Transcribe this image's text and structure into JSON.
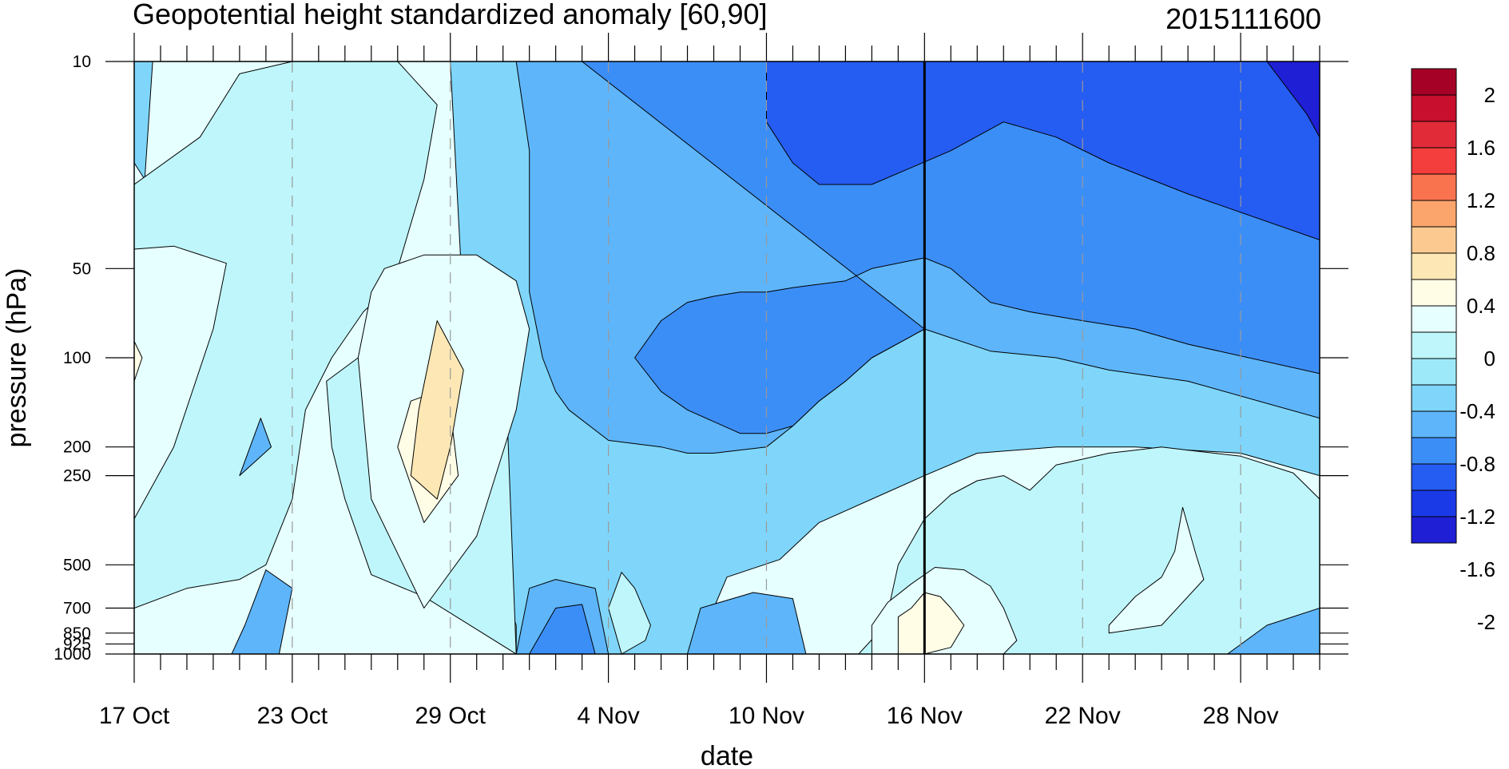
{
  "chart_data": {
    "type": "heatmap",
    "title": "Geopotential height standardized anomaly [60,90]",
    "date_label": "2015111600",
    "xlabel": "date",
    "ylabel": "pressure (hPa)",
    "x_ticks": [
      "17 Oct",
      "23 Oct",
      "29 Oct",
      "4 Nov",
      "10 Nov",
      "16 Nov",
      "22 Nov",
      "28 Nov"
    ],
    "x_range_days": [
      0,
      45
    ],
    "y_ticks": [
      "10",
      "50",
      "100",
      "200",
      "250",
      "500",
      "700",
      "850",
      "925",
      "1000"
    ],
    "y_scale": "log",
    "y_range": [
      1000,
      10
    ],
    "current_date_marker": "16 Nov",
    "colorbar": {
      "labels": [
        "2",
        "1.6",
        "1.2",
        "0.8",
        "0.4",
        "0",
        "-0.4",
        "-0.8",
        "-1.2",
        "-1.6",
        "-2"
      ],
      "levels": [
        2.2,
        2.0,
        1.8,
        1.6,
        1.4,
        1.2,
        1.0,
        0.8,
        0.6,
        0.4,
        0.2,
        0.0,
        -0.2,
        -0.4,
        -0.6,
        -0.8,
        -1.0,
        -1.2,
        -1.4,
        -1.6,
        -1.8,
        -2.0,
        -2.2
      ],
      "colors": [
        "#a50026",
        "#c8102e",
        "#e12b38",
        "#f43d3d",
        "#f9734e",
        "#fba56c",
        "#fcca91",
        "#fde8b5",
        "#fffde6",
        "#e6ffff",
        "#bff6fb",
        "#9de9fa",
        "#7fd6fa",
        "#5eb5fa",
        "#3c8ef7",
        "#255cf2",
        "#1a3ae8",
        "#1f1fd6"
      ]
    },
    "regions": [
      {
        "level": -0.2,
        "points": [
          [
            0,
            10
          ],
          [
            0.7,
            10
          ],
          [
            0.4,
            25
          ],
          [
            0,
            22
          ]
        ]
      },
      {
        "level": 0.2,
        "points": [
          [
            10,
            10
          ],
          [
            6,
            10
          ],
          [
            4,
            11
          ],
          [
            2.5,
            18
          ],
          [
            0,
            26
          ],
          [
            0,
            700
          ],
          [
            2,
            600
          ],
          [
            4,
            560
          ],
          [
            5,
            500
          ],
          [
            6,
            300
          ],
          [
            6.5,
            150
          ],
          [
            7.5,
            100
          ],
          [
            8.7,
            70
          ],
          [
            9.5,
            60
          ],
          [
            11.5,
            65
          ],
          [
            14,
            68
          ],
          [
            14.5,
            1000
          ],
          [
            11,
            640
          ],
          [
            9,
            540
          ],
          [
            8,
            300
          ],
          [
            7.5,
            200
          ],
          [
            7.3,
            120
          ],
          [
            8.5,
            100
          ],
          [
            9.5,
            80
          ],
          [
            10,
            50
          ],
          [
            11,
            25
          ],
          [
            11.5,
            14
          ]
        ]
      },
      {
        "level": 0.4,
        "points": [
          [
            0,
            43
          ],
          [
            1.5,
            42
          ],
          [
            3.5,
            48
          ],
          [
            3,
            80
          ],
          [
            1.5,
            200
          ],
          [
            0,
            350
          ]
        ]
      },
      {
        "level": 0.6,
        "points": [
          [
            0,
            88
          ],
          [
            0.3,
            100
          ],
          [
            0,
            120
          ]
        ]
      },
      {
        "level": 0.4,
        "points": [
          [
            9.5,
            50
          ],
          [
            11,
            45
          ],
          [
            13,
            45
          ],
          [
            14.5,
            55
          ],
          [
            15,
            80
          ],
          [
            14.5,
            150
          ],
          [
            13,
            400
          ],
          [
            11,
            700
          ],
          [
            9,
            300
          ],
          [
            8.5,
            100
          ],
          [
            9,
            60
          ]
        ]
      },
      {
        "level": 0.6,
        "points": [
          [
            11.5,
            130
          ],
          [
            12,
            150
          ],
          [
            12.3,
            250
          ],
          [
            11,
            360
          ],
          [
            10,
            200
          ],
          [
            10.5,
            140
          ]
        ]
      },
      {
        "level": 0.8,
        "points": [
          [
            11.5,
            75
          ],
          [
            12.5,
            110
          ],
          [
            12,
            200
          ],
          [
            11.5,
            300
          ],
          [
            10.5,
            250
          ],
          [
            10.8,
            150
          ]
        ]
      },
      {
        "level": -0.4,
        "points": [
          [
            4.8,
            160
          ],
          [
            5.2,
            200
          ],
          [
            4,
            250
          ],
          [
            4.8,
            160
          ]
        ]
      },
      {
        "level": -0.4,
        "points": [
          [
            3.7,
            1000
          ],
          [
            4.2,
            800
          ],
          [
            5,
            520
          ],
          [
            6,
            600
          ],
          [
            5.5,
            1000
          ]
        ]
      },
      {
        "level": 0.2,
        "points": [
          [
            18.5,
            530
          ],
          [
            19,
            600
          ],
          [
            19.6,
            800
          ],
          [
            19.4,
            900
          ],
          [
            18.5,
            1000
          ],
          [
            18,
            700
          ]
        ]
      },
      {
        "level": 0.2,
        "points": [
          [
            27.5,
            1000
          ],
          [
            28.5,
            800
          ],
          [
            29,
            500
          ],
          [
            30,
            350
          ],
          [
            31,
            290
          ],
          [
            32,
            260
          ],
          [
            33,
            250
          ],
          [
            34,
            280
          ],
          [
            35,
            230
          ],
          [
            36,
            220
          ],
          [
            37,
            210
          ],
          [
            38,
            205
          ],
          [
            39,
            200
          ],
          [
            40,
            205
          ],
          [
            41,
            210
          ],
          [
            42,
            215
          ],
          [
            44,
            245
          ],
          [
            45,
            300
          ],
          [
            45,
            1000
          ]
        ]
      },
      {
        "level": 0.4,
        "points": [
          [
            28,
            800
          ],
          [
            28.6,
            670
          ],
          [
            29.5,
            580
          ],
          [
            30.4,
            510
          ],
          [
            31.5,
            520
          ],
          [
            32.5,
            590
          ],
          [
            33,
            700
          ],
          [
            33.5,
            900
          ],
          [
            33,
            1000
          ],
          [
            28,
            1000
          ]
        ]
      },
      {
        "level": 0.6,
        "points": [
          [
            29,
            750
          ],
          [
            29.5,
            700
          ],
          [
            30,
            620
          ],
          [
            30.6,
            640
          ],
          [
            31,
            700
          ],
          [
            31.5,
            800
          ],
          [
            31,
            950
          ],
          [
            30,
            1000
          ],
          [
            29,
            1000
          ]
        ]
      },
      {
        "level": 0.4,
        "points": [
          [
            37,
            800
          ],
          [
            38,
            640
          ],
          [
            39,
            550
          ],
          [
            39.5,
            450
          ],
          [
            39.8,
            320
          ],
          [
            40.3,
            460
          ],
          [
            40.6,
            560
          ],
          [
            39,
            800
          ],
          [
            37,
            850
          ]
        ]
      }
    ],
    "cool_regions": [
      {
        "level": -0.2,
        "points": [
          [
            12,
            10
          ],
          [
            45,
            10
          ],
          [
            45,
            250
          ],
          [
            42,
            210
          ],
          [
            38,
            200
          ],
          [
            35,
            200
          ],
          [
            32,
            210
          ],
          [
            30,
            250
          ],
          [
            28,
            300
          ],
          [
            26,
            360
          ],
          [
            24.5,
            480
          ],
          [
            22.5,
            550
          ],
          [
            22,
            700
          ],
          [
            21.5,
            1000
          ],
          [
            14.5,
            1000
          ],
          [
            14.5,
            800
          ],
          [
            14,
            600
          ],
          [
            13.5,
            550
          ],
          [
            13,
            500
          ]
        ]
      },
      {
        "level": -0.4,
        "points": [
          [
            14.5,
            10
          ],
          [
            45,
            10
          ],
          [
            45,
            160
          ],
          [
            40,
            120
          ],
          [
            37,
            110
          ],
          [
            35,
            100
          ],
          [
            32.5,
            95
          ],
          [
            30,
            80
          ],
          [
            28,
            100
          ],
          [
            27,
            120
          ],
          [
            26,
            140
          ],
          [
            25,
            170
          ],
          [
            24,
            200
          ],
          [
            22,
            210
          ],
          [
            21,
            210
          ],
          [
            20,
            200
          ],
          [
            18,
            190
          ],
          [
            16.5,
            150
          ],
          [
            16,
            130
          ],
          [
            15.5,
            100
          ],
          [
            15,
            60
          ],
          [
            15,
            20
          ]
        ]
      },
      {
        "level": -0.6,
        "points": [
          [
            17,
            10
          ],
          [
            45,
            10
          ],
          [
            45,
            113
          ],
          [
            40,
            90
          ],
          [
            38,
            80
          ],
          [
            36,
            75
          ],
          [
            34,
            70
          ],
          [
            32.5,
            65
          ],
          [
            31,
            50
          ],
          [
            30,
            46
          ],
          [
            28,
            50
          ],
          [
            27,
            55
          ],
          [
            25,
            58
          ],
          [
            24,
            60
          ],
          [
            23,
            60
          ],
          [
            22,
            62
          ],
          [
            21,
            65
          ],
          [
            20,
            75
          ],
          [
            19,
            100
          ],
          [
            20,
            130
          ],
          [
            21,
            150
          ],
          [
            23,
            180
          ],
          [
            24,
            180
          ],
          [
            25,
            170
          ],
          [
            26,
            140
          ],
          [
            27,
            120
          ],
          [
            28,
            100
          ],
          [
            30,
            80
          ]
        ]
      },
      {
        "level": -0.8,
        "points": [
          [
            24,
            10
          ],
          [
            45,
            10
          ],
          [
            45,
            40
          ],
          [
            40,
            28
          ],
          [
            37,
            22
          ],
          [
            35,
            18
          ],
          [
            33,
            16
          ],
          [
            31,
            20
          ],
          [
            28,
            26
          ],
          [
            26,
            26
          ],
          [
            25,
            22
          ],
          [
            24,
            16
          ]
        ]
      },
      {
        "level": -1.2,
        "points": [
          [
            43,
            10
          ],
          [
            45,
            10
          ],
          [
            45,
            18
          ],
          [
            44.5,
            15
          ]
        ]
      },
      {
        "level": -0.4,
        "points": [
          [
            14.5,
            1000
          ],
          [
            15,
            600
          ],
          [
            16,
            560
          ],
          [
            17.5,
            600
          ],
          [
            18,
            1000
          ]
        ]
      },
      {
        "level": -0.6,
        "points": [
          [
            15,
            1000
          ],
          [
            16,
            700
          ],
          [
            17,
            680
          ],
          [
            17.5,
            1000
          ]
        ]
      },
      {
        "level": -0.4,
        "points": [
          [
            21,
            1000
          ],
          [
            21.5,
            700
          ],
          [
            23.5,
            620
          ],
          [
            25,
            650
          ],
          [
            25.5,
            1000
          ]
        ]
      },
      {
        "level": -0.4,
        "points": [
          [
            41.5,
            1000
          ],
          [
            43,
            800
          ],
          [
            45,
            700
          ],
          [
            45,
            1000
          ]
        ]
      }
    ]
  }
}
